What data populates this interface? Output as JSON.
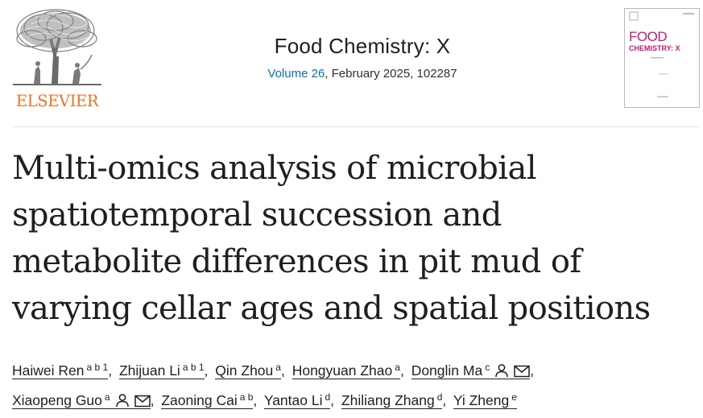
{
  "publisher": {
    "name": "ELSEVIER",
    "brand_color": "#e8742a"
  },
  "journal": {
    "title": "Food Chemistry: X",
    "volume_link": "Volume 26",
    "details": ", February 2025, 102287",
    "link_color": "#0c6fb0"
  },
  "cover": {
    "line1": "FOOD",
    "line2": "CHEMISTRY: X",
    "accent": "#c2187a"
  },
  "article": {
    "title_lines": [
      "Multi-omics analysis of microbial",
      "spatiotemporal succession and",
      "metabolite differences in pit mud of",
      "varying cellar ages and spatial positions"
    ]
  },
  "authors": [
    {
      "name": "Haiwei Ren",
      "aff": "a b 1"
    },
    {
      "name": "Zhijuan Li",
      "aff": "a b 1"
    },
    {
      "name": "Qin Zhou",
      "aff": "a"
    },
    {
      "name": "Hongyuan Zhao",
      "aff": "a"
    },
    {
      "name": "Donglin Ma",
      "aff": "c",
      "icons": [
        "person-icon",
        "envelope-icon"
      ]
    },
    {
      "name": "Xiaopeng Guo",
      "aff": "a",
      "icons": [
        "person-icon",
        "envelope-icon"
      ]
    },
    {
      "name": "Zaoning Cai",
      "aff": "a b"
    },
    {
      "name": "Yantao Li",
      "aff": "d"
    },
    {
      "name": "Zhiliang Zhang",
      "aff": "d"
    },
    {
      "name": "Yi Zheng",
      "aff": "e"
    }
  ]
}
